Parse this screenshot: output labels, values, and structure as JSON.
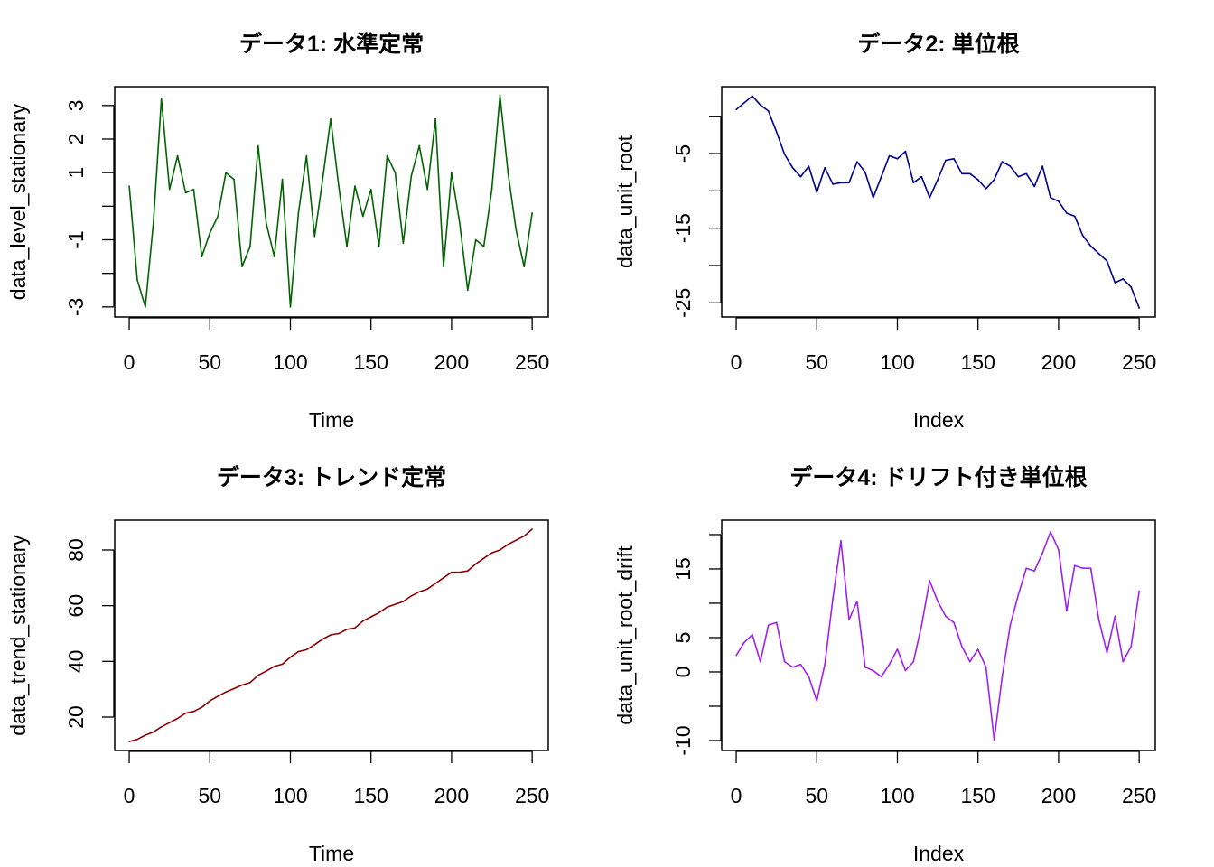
{
  "chart_data": [
    {
      "type": "line",
      "title": "データ1: 水準定常",
      "xlabel": "Time",
      "ylabel": "data_level_stationary",
      "color": "#006400",
      "xlim": [
        -9,
        260
      ],
      "ylim": [
        -3.3,
        3.56
      ],
      "xticks": [
        0,
        50,
        100,
        150,
        200,
        250
      ],
      "xtick_labels": [
        "0",
        "50",
        "100",
        "150",
        "200",
        "250"
      ],
      "yticks": [
        -3,
        -2,
        -1,
        0,
        1,
        2,
        3
      ],
      "ytick_labels": [
        "-3",
        "",
        "-1",
        "",
        "1",
        "2",
        "3"
      ],
      "x": [
        0,
        5,
        10,
        15,
        20,
        25,
        30,
        35,
        40,
        45,
        50,
        55,
        60,
        65,
        70,
        75,
        80,
        85,
        90,
        95,
        100,
        105,
        110,
        115,
        120,
        125,
        130,
        135,
        140,
        145,
        150,
        155,
        160,
        165,
        170,
        175,
        180,
        185,
        190,
        195,
        200,
        205,
        210,
        215,
        220,
        225,
        230,
        235,
        240,
        245,
        250
      ],
      "y": [
        0.6,
        -2.2,
        -3.0,
        -0.5,
        3.2,
        0.5,
        1.5,
        0.4,
        0.5,
        -1.5,
        -0.8,
        -0.3,
        1.0,
        0.8,
        -1.8,
        -1.2,
        1.8,
        -0.5,
        -1.5,
        0.8,
        -3.0,
        -0.2,
        1.5,
        -0.9,
        0.8,
        2.6,
        0.6,
        -1.2,
        0.6,
        -0.3,
        0.5,
        -1.2,
        1.5,
        1.0,
        -1.1,
        0.9,
        1.8,
        0.5,
        2.6,
        -1.8,
        1.0,
        -0.5,
        -2.5,
        -1.0,
        -1.2,
        0.5,
        3.3,
        1.0,
        -0.7,
        -1.8,
        -0.2
      ]
    },
    {
      "type": "line",
      "title": "データ2: 単位根",
      "xlabel": "Index",
      "ylabel": "data_unit_root",
      "color": "#00008B",
      "xlim": [
        -9,
        260
      ],
      "ylim": [
        -26.9,
        3.96
      ],
      "xticks": [
        0,
        50,
        100,
        150,
        200,
        250
      ],
      "xtick_labels": [
        "0",
        "50",
        "100",
        "150",
        "200",
        "250"
      ],
      "yticks": [
        0,
        -5,
        -10,
        -15,
        -20,
        -25
      ],
      "ytick_labels": [
        "",
        "-5",
        "",
        "-15",
        "",
        "-25"
      ],
      "x": [
        0,
        5,
        10,
        15,
        20,
        25,
        30,
        35,
        40,
        45,
        50,
        55,
        60,
        65,
        70,
        75,
        80,
        85,
        90,
        95,
        100,
        105,
        110,
        115,
        120,
        125,
        130,
        135,
        140,
        145,
        150,
        155,
        160,
        165,
        170,
        175,
        180,
        185,
        190,
        195,
        200,
        205,
        210,
        215,
        220,
        225,
        230,
        235,
        240,
        245,
        250
      ],
      "y": [
        0.9,
        1.8,
        2.7,
        1.5,
        0.7,
        -2.1,
        -5.1,
        -6.9,
        -8.1,
        -6.7,
        -10.2,
        -6.9,
        -9.1,
        -8.9,
        -8.9,
        -6.1,
        -7.5,
        -10.9,
        -8.1,
        -5.3,
        -5.7,
        -4.7,
        -8.9,
        -8.1,
        -10.9,
        -8.5,
        -5.9,
        -5.7,
        -7.7,
        -7.7,
        -8.5,
        -9.7,
        -8.5,
        -6.1,
        -6.7,
        -8.1,
        -7.7,
        -9.4,
        -6.7,
        -10.9,
        -11.4,
        -13.0,
        -13.4,
        -16.0,
        -17.4,
        -18.4,
        -19.4,
        -22.3,
        -21.8,
        -22.9,
        -25.7
      ]
    },
    {
      "type": "line",
      "title": "データ3: トレンド定常",
      "xlabel": "Time",
      "ylabel": "data_trend_stationary",
      "color": "#8B0000",
      "xlim": [
        -9,
        260
      ],
      "ylim": [
        8.0,
        90.7
      ],
      "xticks": [
        0,
        50,
        100,
        150,
        200,
        250
      ],
      "xtick_labels": [
        "0",
        "50",
        "100",
        "150",
        "200",
        "250"
      ],
      "yticks": [
        20,
        40,
        60,
        80
      ],
      "ytick_labels": [
        "20",
        "40",
        "60",
        "80"
      ],
      "x": [
        0,
        5,
        10,
        15,
        20,
        25,
        30,
        35,
        40,
        45,
        50,
        55,
        60,
        65,
        70,
        75,
        80,
        85,
        90,
        95,
        100,
        105,
        110,
        115,
        120,
        125,
        130,
        135,
        140,
        145,
        150,
        155,
        160,
        165,
        170,
        175,
        180,
        185,
        190,
        195,
        200,
        205,
        210,
        215,
        220,
        225,
        230,
        235,
        240,
        245,
        250
      ],
      "y": [
        11.2,
        12.0,
        13.5,
        14.6,
        16.5,
        18.0,
        19.5,
        21.4,
        22.0,
        23.5,
        25.8,
        27.5,
        29.0,
        30.2,
        31.5,
        32.4,
        35.0,
        36.5,
        38.2,
        39.0,
        41.5,
        43.5,
        44.2,
        46.0,
        48.0,
        49.5,
        50.0,
        51.5,
        52.0,
        54.5,
        56.0,
        57.5,
        59.5,
        60.5,
        61.5,
        63.5,
        65.0,
        66.0,
        68.0,
        70.0,
        72.0,
        72.0,
        72.5,
        75.0,
        77.0,
        79.0,
        80.0,
        82.0,
        83.5,
        85.0,
        87.5
      ]
    },
    {
      "type": "line",
      "title": "データ4: ドリフト付き単位根",
      "xlabel": "Index",
      "ylabel": "data_unit_root_drift",
      "color": "#A020F0",
      "xlim": [
        -9,
        260
      ],
      "ylim": [
        -11.45,
        22.1
      ],
      "xticks": [
        0,
        50,
        100,
        150,
        200,
        250
      ],
      "xtick_labels": [
        "0",
        "50",
        "100",
        "150",
        "200",
        "250"
      ],
      "yticks": [
        -10,
        -5,
        0,
        5,
        10,
        15,
        20
      ],
      "ytick_labels": [
        "-10",
        "",
        "0",
        "5",
        "",
        "15",
        ""
      ],
      "x": [
        0,
        5,
        10,
        15,
        20,
        25,
        30,
        35,
        40,
        45,
        50,
        55,
        60,
        65,
        70,
        75,
        80,
        85,
        90,
        95,
        100,
        105,
        110,
        115,
        120,
        125,
        130,
        135,
        140,
        145,
        150,
        155,
        160,
        165,
        170,
        175,
        180,
        185,
        190,
        195,
        200,
        205,
        210,
        215,
        220,
        225,
        230,
        235,
        240,
        245,
        250
      ],
      "y": [
        2.4,
        4.3,
        5.4,
        1.5,
        6.8,
        7.2,
        1.5,
        0.7,
        1.1,
        -0.7,
        -4.2,
        1.1,
        10.7,
        19.1,
        7.6,
        10.3,
        0.7,
        0.2,
        -0.7,
        1.1,
        3.3,
        0.2,
        1.5,
        6.8,
        13.3,
        10.3,
        8.1,
        7.2,
        3.7,
        1.5,
        3.3,
        0.7,
        -9.9,
        -0.7,
        6.8,
        11.2,
        15.1,
        14.7,
        17.3,
        20.4,
        17.8,
        8.9,
        15.5,
        15.1,
        15.1,
        7.6,
        2.8,
        8.1,
        1.5,
        3.7,
        11.8
      ]
    }
  ]
}
